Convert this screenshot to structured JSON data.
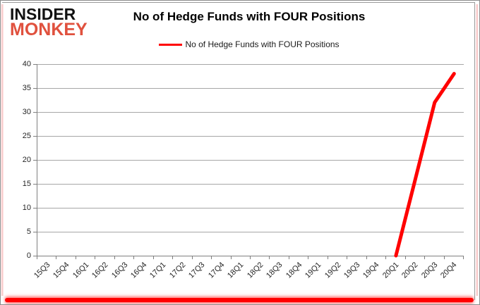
{
  "brand": {
    "line1": "INSIDER",
    "line2": "MONKEY",
    "color1": "#111111",
    "color2": "#e0513e"
  },
  "header": {
    "title": "No of Hedge Funds with FOUR Positions"
  },
  "legend": {
    "label": "No of Hedge Funds with FOUR Positions",
    "color": "#ff0000"
  },
  "chart_data": {
    "type": "line",
    "title": "No of Hedge Funds with FOUR Positions",
    "categories": [
      "15Q3",
      "15Q4",
      "16Q1",
      "16Q2",
      "16Q3",
      "16Q4",
      "17Q1",
      "17Q2",
      "17Q3",
      "17Q4",
      "18Q1",
      "18Q2",
      "18Q3",
      "18Q4",
      "19Q1",
      "19Q2",
      "19Q3",
      "19Q4",
      "20Q1",
      "20Q2",
      "20Q3",
      "20Q4"
    ],
    "series": [
      {
        "name": "No of Hedge Funds with FOUR Positions",
        "color": "#ff0000",
        "values": [
          null,
          null,
          null,
          null,
          null,
          null,
          null,
          null,
          null,
          null,
          null,
          null,
          null,
          null,
          null,
          null,
          null,
          null,
          0,
          16,
          32,
          38
        ]
      }
    ],
    "ylim": [
      0,
      40
    ],
    "yticks": [
      0,
      5,
      10,
      15,
      20,
      25,
      30,
      35,
      40
    ],
    "xlabel": "",
    "ylabel": "",
    "grid": "horizontal",
    "legend_position": "top-center",
    "colors": {
      "gridline": "#a6a6a6",
      "axis": "#7f7f7f",
      "tick_text": "#262626"
    }
  }
}
